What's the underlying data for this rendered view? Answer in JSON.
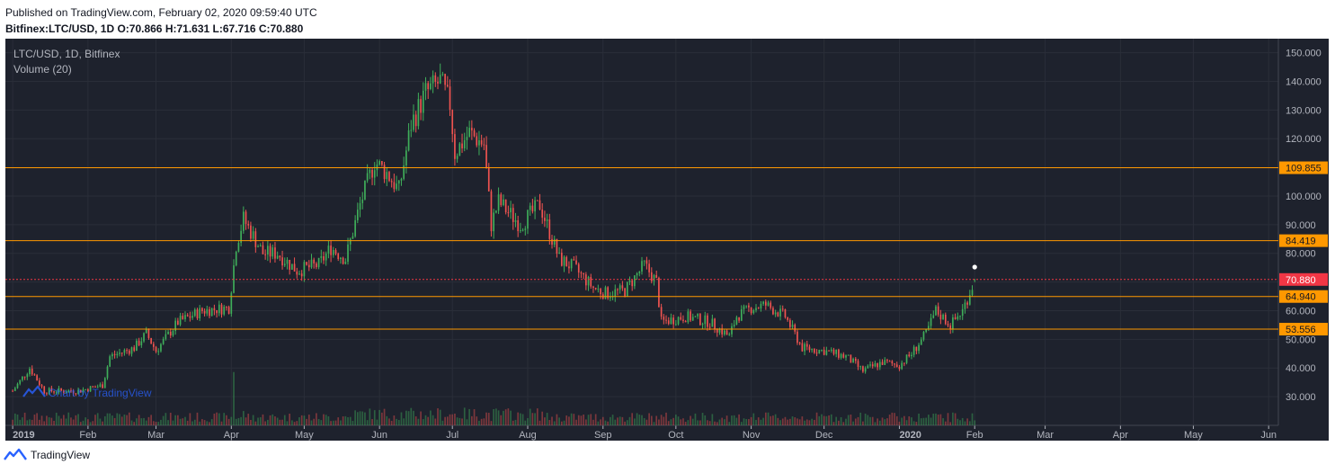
{
  "header": {
    "published": "Published on TradingView.com, February 02, 2020 09:59:40 UTC",
    "ohlc": "Bitfinex:LTC/USD, 1D  O:70.866  H:71.631  L:67.716  C:70.880"
  },
  "chart": {
    "legend_title": "LTC/USD, 1D, Bitfinex",
    "legend_volume": "Volume (20)",
    "watermark": "Chart by TradingView"
  },
  "footer": {
    "brand": "TradingView"
  },
  "colors": {
    "background": "#1e222d",
    "grid": "#2a2e39",
    "up": "#26a69a",
    "up_candle": "#3fae5a",
    "down": "#ef5350",
    "level": "#ff9800",
    "last_price": "#f23645",
    "axis_text": "#b2b5be"
  },
  "chart_data": {
    "type": "candlestick",
    "symbol": "LTC/USD",
    "interval": "1D",
    "exchange": "Bitfinex",
    "ylim": [
      20,
      153
    ],
    "y_ticks": [
      30,
      40,
      50,
      60,
      70,
      80,
      90,
      100,
      110,
      120,
      130,
      140,
      150
    ],
    "y_tick_labels": [
      "30.000",
      "40.000",
      "50.000",
      "60.000",
      "70.000",
      "80.000",
      "90.000",
      "100.000",
      "110.000",
      "120.000",
      "130.000",
      "140.000",
      "150.000"
    ],
    "x_ticks": [
      {
        "date": "2019-01-01",
        "label": "2019",
        "bold": true
      },
      {
        "date": "2019-02-01",
        "label": "Feb"
      },
      {
        "date": "2019-03-01",
        "label": "Mar"
      },
      {
        "date": "2019-04-01",
        "label": "Apr"
      },
      {
        "date": "2019-05-01",
        "label": "May"
      },
      {
        "date": "2019-06-01",
        "label": "Jun"
      },
      {
        "date": "2019-07-01",
        "label": "Jul"
      },
      {
        "date": "2019-08-01",
        "label": "Aug"
      },
      {
        "date": "2019-09-01",
        "label": "Sep"
      },
      {
        "date": "2019-10-01",
        "label": "Oct"
      },
      {
        "date": "2019-11-01",
        "label": "Nov"
      },
      {
        "date": "2019-12-01",
        "label": "Dec"
      },
      {
        "date": "2020-01-01",
        "label": "2020",
        "bold": true
      },
      {
        "date": "2020-02-01",
        "label": "Feb"
      },
      {
        "date": "2020-03-01",
        "label": "Mar"
      },
      {
        "date": "2020-04-01",
        "label": "Apr"
      },
      {
        "date": "2020-05-01",
        "label": "May"
      },
      {
        "date": "2020-06-01",
        "label": "Jun"
      }
    ],
    "x_range": [
      "2018-12-29",
      "2020-06-05"
    ],
    "horizontal_levels": [
      {
        "value": 109.855,
        "label": "109.855"
      },
      {
        "value": 84.419,
        "label": "84.419"
      },
      {
        "value": 64.94,
        "label": "64.940"
      },
      {
        "value": 53.556,
        "label": "53.556"
      }
    ],
    "last_price": {
      "value": 70.88,
      "label": "70.880"
    },
    "close_anchors": [
      {
        "date": "2019-01-01",
        "close": 32
      },
      {
        "date": "2019-01-08",
        "close": 40
      },
      {
        "date": "2019-01-14",
        "close": 32
      },
      {
        "date": "2019-01-28",
        "close": 32
      },
      {
        "date": "2019-02-07",
        "close": 34
      },
      {
        "date": "2019-02-10",
        "close": 44
      },
      {
        "date": "2019-02-20",
        "close": 47
      },
      {
        "date": "2019-02-25",
        "close": 52
      },
      {
        "date": "2019-03-01",
        "close": 46
      },
      {
        "date": "2019-03-10",
        "close": 56
      },
      {
        "date": "2019-03-20",
        "close": 60
      },
      {
        "date": "2019-03-31",
        "close": 61
      },
      {
        "date": "2019-04-03",
        "close": 83
      },
      {
        "date": "2019-04-06",
        "close": 92
      },
      {
        "date": "2019-04-14",
        "close": 80
      },
      {
        "date": "2019-04-20",
        "close": 80
      },
      {
        "date": "2019-04-28",
        "close": 74
      },
      {
        "date": "2019-05-07",
        "close": 76
      },
      {
        "date": "2019-05-12",
        "close": 82
      },
      {
        "date": "2019-05-18",
        "close": 78
      },
      {
        "date": "2019-05-24",
        "close": 97
      },
      {
        "date": "2019-05-30",
        "close": 112
      },
      {
        "date": "2019-06-04",
        "close": 108
      },
      {
        "date": "2019-06-09",
        "close": 102
      },
      {
        "date": "2019-06-14",
        "close": 125
      },
      {
        "date": "2019-06-20",
        "close": 136
      },
      {
        "date": "2019-06-26",
        "close": 140
      },
      {
        "date": "2019-06-30",
        "close": 132
      },
      {
        "date": "2019-07-02",
        "close": 115
      },
      {
        "date": "2019-07-08",
        "close": 122
      },
      {
        "date": "2019-07-14",
        "close": 118
      },
      {
        "date": "2019-07-17",
        "close": 90
      },
      {
        "date": "2019-07-20",
        "close": 98
      },
      {
        "date": "2019-07-29",
        "close": 90
      },
      {
        "date": "2019-08-06",
        "close": 97
      },
      {
        "date": "2019-08-14",
        "close": 78
      },
      {
        "date": "2019-08-20",
        "close": 75
      },
      {
        "date": "2019-08-28",
        "close": 68
      },
      {
        "date": "2019-09-02",
        "close": 66
      },
      {
        "date": "2019-09-10",
        "close": 67
      },
      {
        "date": "2019-09-18",
        "close": 76
      },
      {
        "date": "2019-09-23",
        "close": 70
      },
      {
        "date": "2019-09-25",
        "close": 56
      },
      {
        "date": "2019-10-05",
        "close": 58
      },
      {
        "date": "2019-10-15",
        "close": 56
      },
      {
        "date": "2019-10-23",
        "close": 51
      },
      {
        "date": "2019-10-26",
        "close": 58
      },
      {
        "date": "2019-11-01",
        "close": 61
      },
      {
        "date": "2019-11-07",
        "close": 62
      },
      {
        "date": "2019-11-15",
        "close": 58
      },
      {
        "date": "2019-11-22",
        "close": 47
      },
      {
        "date": "2019-12-01",
        "close": 46
      },
      {
        "date": "2019-12-10",
        "close": 44
      },
      {
        "date": "2019-12-17",
        "close": 39
      },
      {
        "date": "2019-12-25",
        "close": 42
      },
      {
        "date": "2020-01-01",
        "close": 41
      },
      {
        "date": "2020-01-06",
        "close": 45
      },
      {
        "date": "2020-01-12",
        "close": 52
      },
      {
        "date": "2020-01-16",
        "close": 60
      },
      {
        "date": "2020-01-22",
        "close": 55
      },
      {
        "date": "2020-01-27",
        "close": 60
      },
      {
        "date": "2020-02-01",
        "close": 70.88
      }
    ]
  }
}
